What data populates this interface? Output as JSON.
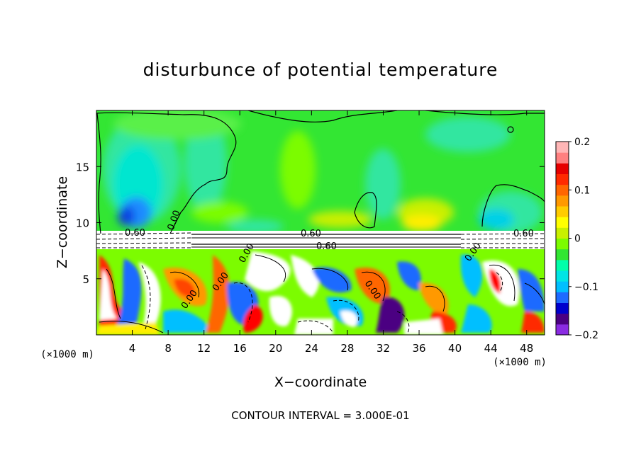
{
  "title": "disturbunce of potential temperature",
  "footer": "CONTOUR INTERVAL = 3.000E-01",
  "chart_data": {
    "type": "heatmap",
    "title": "disturbunce of potential temperature",
    "xlabel": "X−coordinate",
    "ylabel": "Z−coordinate",
    "x_unit_left": "(×1000 m)",
    "x_unit_right": "(×1000 m)",
    "xlim": [
      0,
      50
    ],
    "ylim": [
      0,
      20
    ],
    "x_ticks": [
      4,
      8,
      12,
      16,
      20,
      24,
      28,
      32,
      36,
      40,
      44,
      48
    ],
    "y_ticks": [
      5,
      10,
      15
    ],
    "colorbar": {
      "range": [
        -0.2,
        0.2
      ],
      "ticks": [
        {
          "value": 0.2,
          "label": "0.2"
        },
        {
          "value": 0.1,
          "label": "0.1"
        },
        {
          "value": 0,
          "label": "0"
        },
        {
          "value": -0.1,
          "label": "−0.1"
        },
        {
          "value": -0.2,
          "label": "−0.2"
        }
      ],
      "colors": [
        "#8a2be2",
        "#4b0082",
        "#0000cd",
        "#1e6bff",
        "#00bfff",
        "#00e5e5",
        "#00ffaa",
        "#32e632",
        "#7cfc00",
        "#c8f000",
        "#ffff00",
        "#ffcc00",
        "#ff9900",
        "#ff6600",
        "#ff2a00",
        "#e60000",
        "#ff8080",
        "#ffb6b6"
      ]
    },
    "contour_interval": "3.000E-01",
    "contour_labels": [
      "0.00",
      "0.60",
      "0.60",
      "0.60",
      "0.60",
      "0.00",
      "0.00",
      "0.00",
      "0.00",
      "0.00"
    ],
    "background_value": 0.0,
    "features": [
      {
        "name": "upper-left cool anomaly",
        "x": 4.5,
        "z": 12,
        "value": -0.08
      },
      {
        "name": "upper-right cool anomaly",
        "x": 46,
        "z": 12,
        "value": -0.06
      },
      {
        "name": "upper-center warm streak",
        "x": 21,
        "z": 14,
        "value": 0.04
      },
      {
        "name": "upper-right warm streak",
        "x": 37,
        "z": 11,
        "value": 0.08
      },
      {
        "name": "inversion layer",
        "x": 25,
        "z": 8.5,
        "value": 0.6
      }
    ]
  }
}
